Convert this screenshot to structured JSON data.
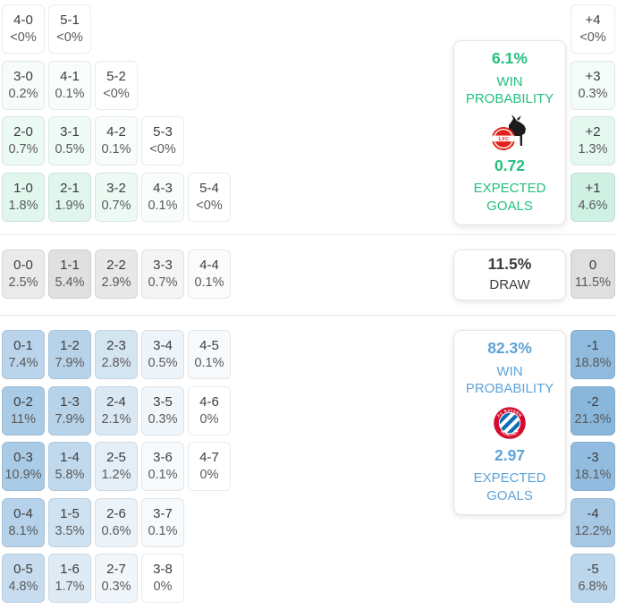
{
  "accents": {
    "home_green": "#22c17d",
    "home_green_tint": "#20c17d",
    "away_blue": "#5ea3d8",
    "away_blue_tint": "#4a90ca",
    "draw_gray_tint": "#7a7a7a",
    "draw_text": "#3b3b3b",
    "score_text": "#3d3d3d",
    "pct_text": "#5a5a5a"
  },
  "home": {
    "rows": [
      [
        {
          "score": "4-0",
          "pct": "<0%",
          "v": 0
        },
        {
          "score": "5-1",
          "pct": "<0%",
          "v": 0
        }
      ],
      [
        {
          "score": "3-0",
          "pct": "0.2%",
          "v": 0.2
        },
        {
          "score": "4-1",
          "pct": "0.1%",
          "v": 0.1
        },
        {
          "score": "5-2",
          "pct": "<0%",
          "v": 0
        }
      ],
      [
        {
          "score": "2-0",
          "pct": "0.7%",
          "v": 0.7
        },
        {
          "score": "3-1",
          "pct": "0.5%",
          "v": 0.5
        },
        {
          "score": "4-2",
          "pct": "0.1%",
          "v": 0.1
        },
        {
          "score": "5-3",
          "pct": "<0%",
          "v": 0
        }
      ],
      [
        {
          "score": "1-0",
          "pct": "1.8%",
          "v": 1.8
        },
        {
          "score": "2-1",
          "pct": "1.9%",
          "v": 1.9
        },
        {
          "score": "3-2",
          "pct": "0.7%",
          "v": 0.7
        },
        {
          "score": "4-3",
          "pct": "0.1%",
          "v": 0.1
        },
        {
          "score": "5-4",
          "pct": "<0%",
          "v": 0
        }
      ]
    ],
    "diff": [
      {
        "label": "+4",
        "pct": "<0%",
        "v": 0
      },
      {
        "label": "+3",
        "pct": "0.3%",
        "v": 0.3
      },
      {
        "label": "+2",
        "pct": "1.3%",
        "v": 1.3
      },
      {
        "label": "+1",
        "pct": "4.6%",
        "v": 4.6
      }
    ],
    "panel": {
      "win_value": "6.1%",
      "win_label": "WIN PROBABILITY",
      "xg_value": "0.72",
      "xg_label": "EXPECTED GOALS"
    }
  },
  "draw": {
    "rows": [
      [
        {
          "score": "0-0",
          "pct": "2.5%",
          "v": 2.5
        },
        {
          "score": "1-1",
          "pct": "5.4%",
          "v": 5.4
        },
        {
          "score": "2-2",
          "pct": "2.9%",
          "v": 2.9
        },
        {
          "score": "3-3",
          "pct": "0.7%",
          "v": 0.7
        },
        {
          "score": "4-4",
          "pct": "0.1%",
          "v": 0.1
        }
      ]
    ],
    "diff": [
      {
        "label": "0",
        "pct": "11.5%",
        "v": 11.5
      }
    ],
    "panel": {
      "value": "11.5%",
      "label": "DRAW"
    }
  },
  "away": {
    "rows": [
      [
        {
          "score": "0-1",
          "pct": "7.4%",
          "v": 7.4
        },
        {
          "score": "1-2",
          "pct": "7.9%",
          "v": 7.9
        },
        {
          "score": "2-3",
          "pct": "2.8%",
          "v": 2.8
        },
        {
          "score": "3-4",
          "pct": "0.5%",
          "v": 0.5
        },
        {
          "score": "4-5",
          "pct": "0.1%",
          "v": 0.1
        }
      ],
      [
        {
          "score": "0-2",
          "pct": "11%",
          "v": 11
        },
        {
          "score": "1-3",
          "pct": "7.9%",
          "v": 7.9
        },
        {
          "score": "2-4",
          "pct": "2.1%",
          "v": 2.1
        },
        {
          "score": "3-5",
          "pct": "0.3%",
          "v": 0.3
        },
        {
          "score": "4-6",
          "pct": "0%",
          "v": 0
        }
      ],
      [
        {
          "score": "0-3",
          "pct": "10.9%",
          "v": 10.9
        },
        {
          "score": "1-4",
          "pct": "5.8%",
          "v": 5.8
        },
        {
          "score": "2-5",
          "pct": "1.2%",
          "v": 1.2
        },
        {
          "score": "3-6",
          "pct": "0.1%",
          "v": 0.1
        },
        {
          "score": "4-7",
          "pct": "0%",
          "v": 0
        }
      ],
      [
        {
          "score": "0-4",
          "pct": "8.1%",
          "v": 8.1
        },
        {
          "score": "1-5",
          "pct": "3.5%",
          "v": 3.5
        },
        {
          "score": "2-6",
          "pct": "0.6%",
          "v": 0.6
        },
        {
          "score": "3-7",
          "pct": "0.1%",
          "v": 0.1
        }
      ],
      [
        {
          "score": "0-5",
          "pct": "4.8%",
          "v": 4.8
        },
        {
          "score": "1-6",
          "pct": "1.7%",
          "v": 1.7
        },
        {
          "score": "2-7",
          "pct": "0.3%",
          "v": 0.3
        },
        {
          "score": "3-8",
          "pct": "0%",
          "v": 0
        }
      ]
    ],
    "diff": [
      {
        "label": "-1",
        "pct": "18.8%",
        "v": 18.8
      },
      {
        "label": "-2",
        "pct": "21.3%",
        "v": 21.3
      },
      {
        "label": "-3",
        "pct": "18.1%",
        "v": 18.1
      },
      {
        "label": "-4",
        "pct": "12.2%",
        "v": 12.2
      },
      {
        "label": "-5",
        "pct": "6.8%",
        "v": 6.8
      }
    ],
    "panel": {
      "win_value": "82.3%",
      "win_label": "WIN PROBABILITY",
      "xg_value": "2.97",
      "xg_label": "EXPECTED GOALS"
    }
  },
  "logos": {
    "koeln": {
      "name": "fc-koeln-crest",
      "band_text": "1.FC"
    },
    "bayern": {
      "name": "fc-bayern-crest",
      "top_text": "FC BAYERN",
      "bottom_text": "MÜNCHEN"
    }
  }
}
